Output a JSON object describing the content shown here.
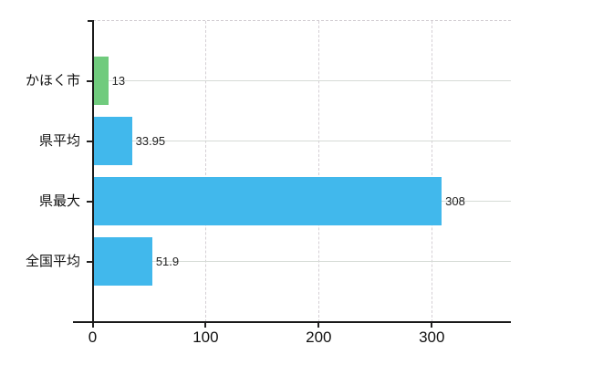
{
  "chart_data": {
    "type": "bar",
    "orientation": "horizontal",
    "title": "",
    "categories": [
      "かほく市",
      "県平均",
      "県最大",
      "全国平均"
    ],
    "values": [
      13,
      33.95,
      308,
      51.9
    ],
    "value_labels": [
      "13",
      "33.95",
      "308",
      "51.9"
    ],
    "x_ticks": [
      0,
      100,
      200,
      300
    ],
    "x_tick_labels": [
      "0",
      "100",
      "200",
      "300"
    ],
    "xlim": [
      0,
      370
    ],
    "ylabel": "",
    "xlabel": "",
    "legend": "none",
    "grid": {
      "vertical_gridlines": "dashed",
      "horizontal_gridlines": "solid",
      "plot_top_border": "dashed"
    },
    "colors": {
      "bars": [
        "#70cb7d",
        "#41b8ec",
        "#41b8ec",
        "#41b8ec"
      ],
      "axis": "#1a1a1a",
      "tick": "#222222",
      "grid_horizontal": "#d6dbd6",
      "grid_vertical": "#d4cfd4",
      "top_border": "#d2cdd2",
      "category_label": "#111111",
      "value_label": "#222222",
      "axis_label": "#111111",
      "background": "#ffffff"
    }
  }
}
